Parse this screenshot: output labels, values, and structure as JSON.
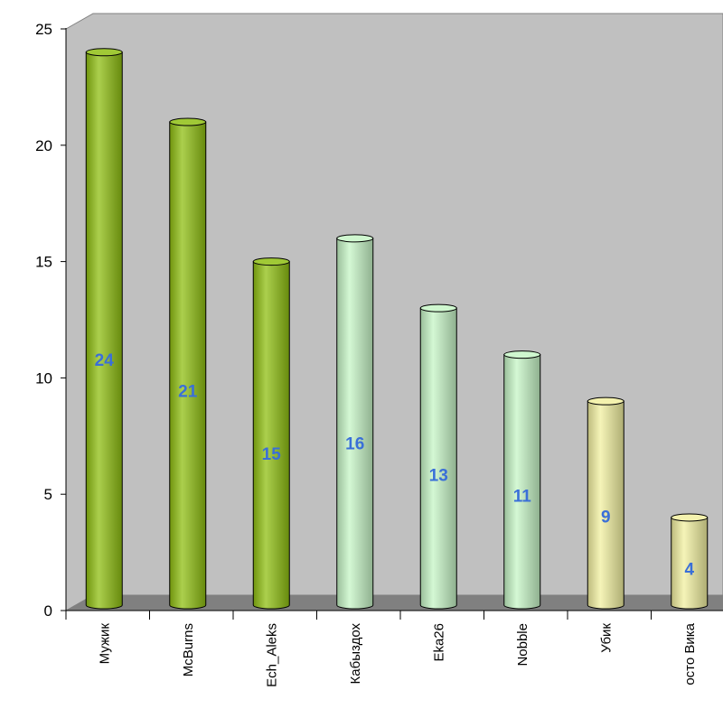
{
  "chart_data": {
    "type": "bar",
    "style": "3d-cylinder",
    "categories": [
      "Мужик",
      "McBurns",
      "Ech_Aleks",
      "Кабыздох",
      "Eka26",
      "Nobble",
      "Убик",
      "осто Вика"
    ],
    "values": [
      24,
      21,
      15,
      16,
      13,
      11,
      9,
      4
    ],
    "data_labels": [
      "24",
      "21",
      "15",
      "16",
      "13",
      "11",
      "9",
      "4"
    ],
    "bar_colors": [
      "#8fbf12",
      "#8fbf12",
      "#8fbf12",
      "#c6f5c6",
      "#c6f5c6",
      "#c6f5c6",
      "#f2f0a0",
      "#f2f0a0"
    ],
    "ylim": [
      0,
      25
    ],
    "yticks": [
      0,
      5,
      10,
      15,
      20,
      25
    ],
    "grid": false,
    "legend": "none",
    "title": "",
    "xlabel": "",
    "ylabel": "",
    "colors": {
      "wall": "#c0c0c0",
      "floor": "#808080",
      "label": "#3a6fd8"
    }
  }
}
